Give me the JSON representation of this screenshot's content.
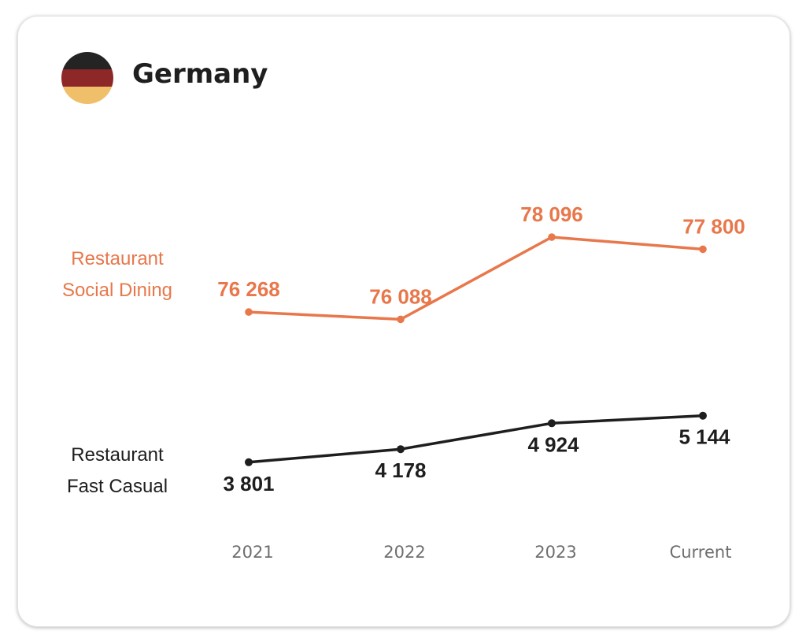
{
  "header": {
    "title": "Germany",
    "flag_colors": [
      "#242424",
      "#8e2727",
      "#efbf69"
    ]
  },
  "chart_data": {
    "type": "line",
    "categories": [
      "2021",
      "2022",
      "2023",
      "Current"
    ],
    "series": [
      {
        "name_lines": [
          "Restaurant",
          "Social Dining"
        ],
        "values": [
          76268,
          76088,
          78096,
          77800
        ],
        "labels": [
          "76 268",
          "76 088",
          "78 096",
          "77 800"
        ],
        "color": "#e8774b"
      },
      {
        "name_lines": [
          "Restaurant",
          "Fast Casual"
        ],
        "values": [
          3801,
          4178,
          4924,
          5144
        ],
        "labels": [
          "3 801",
          "4 178",
          "4 924",
          "5 144"
        ],
        "color": "#1e1e1e"
      }
    ],
    "grid": false,
    "legend": "left"
  }
}
